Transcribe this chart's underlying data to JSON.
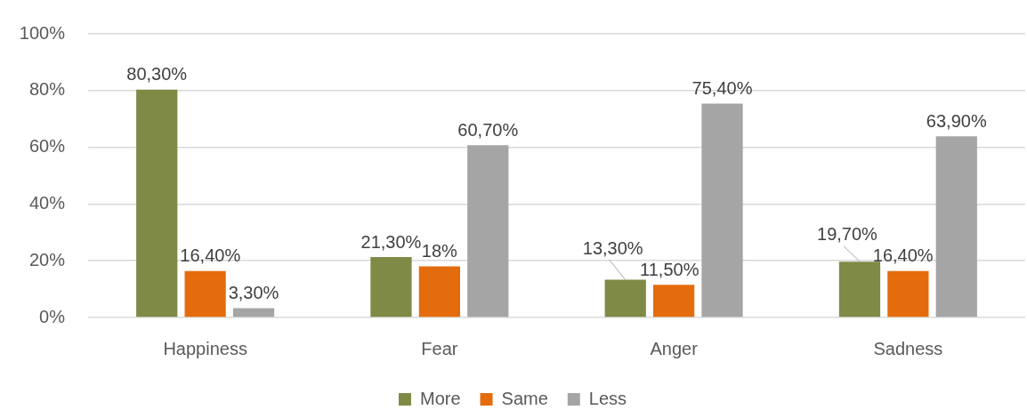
{
  "chart_data": {
    "type": "bar",
    "categories": [
      "Happiness",
      "Fear",
      "Anger",
      "Sadness"
    ],
    "series": [
      {
        "name": "More",
        "color": "#7f8a46",
        "values": [
          80.3,
          21.3,
          13.3,
          19.7
        ],
        "value_labels": [
          "80,30%",
          "21,30%",
          "13,30%",
          "19,70%"
        ]
      },
      {
        "name": "Same",
        "color": "#e46c0d",
        "values": [
          16.4,
          18,
          11.5,
          16.4
        ],
        "value_labels": [
          "16,40%",
          "18%",
          "11,50%",
          "16,40%"
        ]
      },
      {
        "name": "Less",
        "color": "#a5a5a5",
        "values": [
          3.3,
          60.7,
          75.4,
          63.9
        ],
        "value_labels": [
          "3,30%",
          "60,70%",
          "75,40%",
          "63,90%"
        ]
      }
    ],
    "ylim": [
      0,
      100
    ],
    "yticks": [
      {
        "value": 0,
        "label": "0%"
      },
      {
        "value": 20,
        "label": "20%"
      },
      {
        "value": 40,
        "label": "40%"
      },
      {
        "value": 60,
        "label": "60%"
      },
      {
        "value": 80,
        "label": "80%"
      },
      {
        "value": 100,
        "label": "100%"
      }
    ],
    "grid": "y",
    "legend": "bottom"
  }
}
